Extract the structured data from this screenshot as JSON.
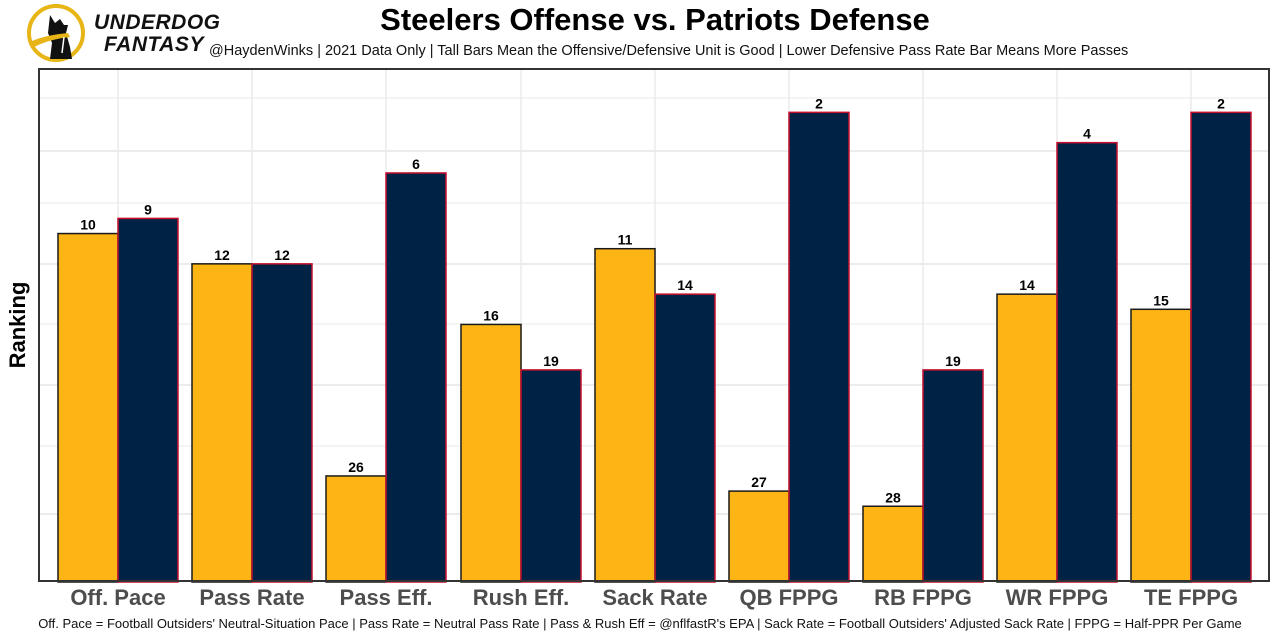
{
  "brand": {
    "line1": "UNDERDOG",
    "line2": "FANTASY",
    "logo_icon": "underdog-dog-logo-icon"
  },
  "chart_data": {
    "type": "bar",
    "title": "Steelers Offense vs. Patriots Defense",
    "subtitle": "@HaydenWinks | 2021 Data Only | Tall Bars Mean the Offensive/Defensive Unit is Good | Lower Defensive Pass Rate Bar Means More Passes",
    "xlabel": "",
    "ylabel": "Ranking",
    "y_axis": "rank, reversed (1 = tallest bar)",
    "ylim_rank": [
      34,
      0
    ],
    "grid": true,
    "categories": [
      "Off. Pace",
      "Pass Rate",
      "Pass Eff.",
      "Rush Eff.",
      "Sack Rate",
      "QB FPPG",
      "RB FPPG",
      "WR FPPG",
      "TE FPPG"
    ],
    "series": [
      {
        "name": "Steelers Offense",
        "color": "#FDB515",
        "border": "#1a1a1a",
        "values": [
          10,
          12,
          26,
          16,
          11,
          27,
          28,
          14,
          15
        ]
      },
      {
        "name": "Patriots Defense",
        "color": "#002244",
        "border": "#C8102E",
        "values": [
          9,
          12,
          6,
          19,
          14,
          2,
          19,
          4,
          2
        ]
      }
    ],
    "footnote": "Off. Pace = Football Outsiders' Neutral-Situation Pace | Pass Rate = Neutral Pass Rate | Pass & Rush Eff = @nflfastR's EPA | Sack Rate = Football Outsiders' Adjusted Sack Rate | FPPG = Half-PPR Per Game"
  }
}
